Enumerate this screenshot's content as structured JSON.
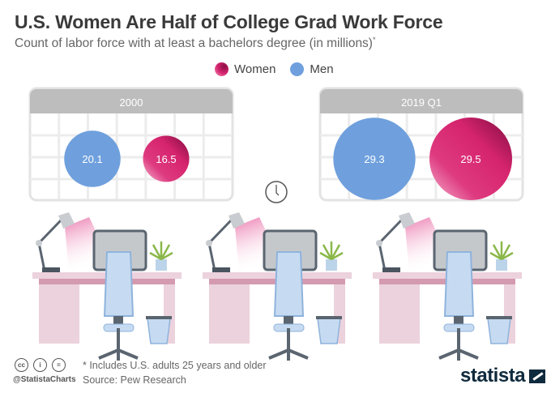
{
  "chart_data": {
    "type": "bubble",
    "title": "U.S. Women Are Half of College Grad Work Force",
    "subtitle": "Count of labor force with at least a bachelors degree (in millions)",
    "subtitle_mark": "*",
    "legend": [
      {
        "name": "Women",
        "color": "#d6246e"
      },
      {
        "name": "Men",
        "color": "#6fa0dd"
      }
    ],
    "panels": [
      {
        "label": "2000",
        "values": [
          {
            "series": "Men",
            "value": 20.1,
            "label": "20.1"
          },
          {
            "series": "Women",
            "value": 16.5,
            "label": "16.5"
          }
        ]
      },
      {
        "label": "2019 Q1",
        "values": [
          {
            "series": "Men",
            "value": 29.3,
            "label": "29.3"
          },
          {
            "series": "Women",
            "value": 29.5,
            "label": "29.5"
          }
        ]
      }
    ]
  },
  "footer": {
    "note": "* Includes U.S. adults 25 years and older",
    "source": "Source: Pew Research",
    "handle": "@StatistaCharts",
    "cc_icons": [
      "cc",
      "i",
      "="
    ],
    "logo": "statista"
  }
}
